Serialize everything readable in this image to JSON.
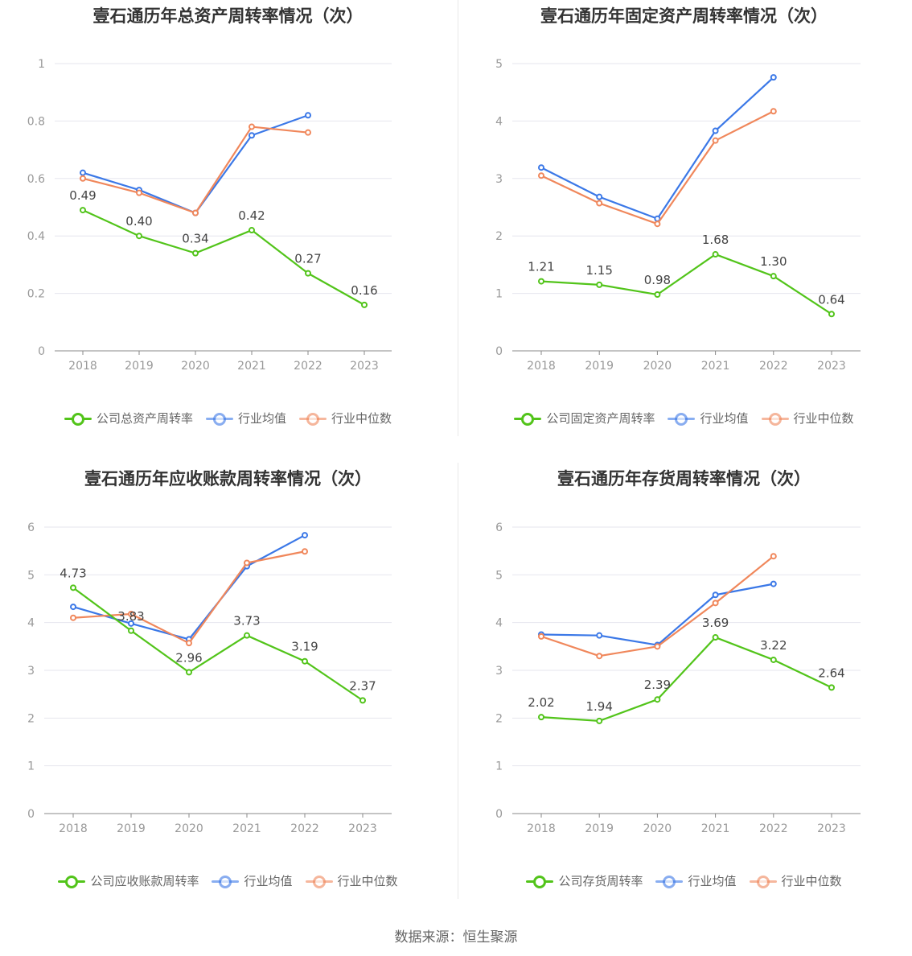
{
  "colors": {
    "company": "#52c41a",
    "avg": "#3b78e7",
    "median": "#f0875b",
    "grid": "#e6e6ee",
    "axis": "#888888",
    "text": "#999999"
  },
  "footer": "数据来源：恒生聚源",
  "chart_data": [
    {
      "type": "line",
      "title": "壹石通历年总资产周转率情况（次）",
      "categories": [
        "2018",
        "2019",
        "2020",
        "2021",
        "2022",
        "2023"
      ],
      "ylim": [
        0,
        1
      ],
      "yticks": [
        "0",
        "0.2",
        "0.4",
        "0.6",
        "0.8",
        "1"
      ],
      "grid": true,
      "legend_position": "bottom-center",
      "series": [
        {
          "name": "公司总资产周转率",
          "key": "company",
          "values": [
            0.49,
            0.4,
            0.34,
            0.42,
            0.27,
            0.16
          ],
          "labels": [
            "0.49",
            "0.40",
            "0.34",
            "0.42",
            "0.27",
            "0.16"
          ]
        },
        {
          "name": "行业均值",
          "key": "avg",
          "values": [
            0.62,
            0.56,
            0.48,
            0.75,
            0.82,
            null
          ]
        },
        {
          "name": "行业中位数",
          "key": "median",
          "values": [
            0.6,
            0.55,
            0.48,
            0.78,
            0.76,
            null
          ]
        }
      ]
    },
    {
      "type": "line",
      "title": "壹石通历年固定资产周转率情况（次）",
      "categories": [
        "2018",
        "2019",
        "2020",
        "2021",
        "2022",
        "2023"
      ],
      "ylim": [
        0,
        5
      ],
      "yticks": [
        "0",
        "1",
        "2",
        "3",
        "4",
        "5"
      ],
      "grid": true,
      "legend_position": "bottom-center",
      "series": [
        {
          "name": "公司固定资产周转率",
          "key": "company",
          "values": [
            1.21,
            1.15,
            0.98,
            1.68,
            1.3,
            0.64
          ],
          "labels": [
            "1.21",
            "1.15",
            "0.98",
            "1.68",
            "1.30",
            "0.64"
          ]
        },
        {
          "name": "行业均值",
          "key": "avg",
          "values": [
            3.19,
            2.68,
            2.3,
            3.83,
            4.76,
            null
          ]
        },
        {
          "name": "行业中位数",
          "key": "median",
          "values": [
            3.05,
            2.57,
            2.21,
            3.66,
            4.17,
            null
          ]
        }
      ]
    },
    {
      "type": "line",
      "title": "壹石通历年应收账款周转率情况（次）",
      "categories": [
        "2018",
        "2019",
        "2020",
        "2021",
        "2022",
        "2023"
      ],
      "ylim": [
        0,
        6
      ],
      "yticks": [
        "0",
        "1",
        "2",
        "3",
        "4",
        "5",
        "6"
      ],
      "grid": true,
      "legend_position": "bottom-center",
      "series": [
        {
          "name": "公司应收账款周转率",
          "key": "company",
          "values": [
            4.73,
            3.83,
            2.96,
            3.73,
            3.19,
            2.37
          ],
          "labels": [
            "4.73",
            "3.83",
            "2.96",
            "3.73",
            "3.19",
            "2.37"
          ]
        },
        {
          "name": "行业均值",
          "key": "avg",
          "values": [
            4.33,
            3.98,
            3.65,
            5.18,
            5.83,
            null
          ]
        },
        {
          "name": "行业中位数",
          "key": "median",
          "values": [
            4.1,
            4.18,
            3.57,
            5.25,
            5.49,
            null
          ]
        }
      ]
    },
    {
      "type": "line",
      "title": "壹石通历年存货周转率情况（次）",
      "categories": [
        "2018",
        "2019",
        "2020",
        "2021",
        "2022",
        "2023"
      ],
      "ylim": [
        0,
        6
      ],
      "yticks": [
        "0",
        "1",
        "2",
        "3",
        "4",
        "5",
        "6"
      ],
      "grid": true,
      "legend_position": "bottom-center",
      "series": [
        {
          "name": "公司存货周转率",
          "key": "company",
          "values": [
            2.02,
            1.94,
            2.39,
            3.69,
            3.22,
            2.64
          ],
          "labels": [
            "2.02",
            "1.94",
            "2.39",
            "3.69",
            "3.22",
            "2.64"
          ]
        },
        {
          "name": "行业均值",
          "key": "avg",
          "values": [
            3.75,
            3.73,
            3.53,
            4.58,
            4.81,
            null
          ]
        },
        {
          "name": "行业中位数",
          "key": "median",
          "values": [
            3.71,
            3.3,
            3.5,
            4.41,
            5.39,
            null
          ]
        }
      ]
    }
  ]
}
